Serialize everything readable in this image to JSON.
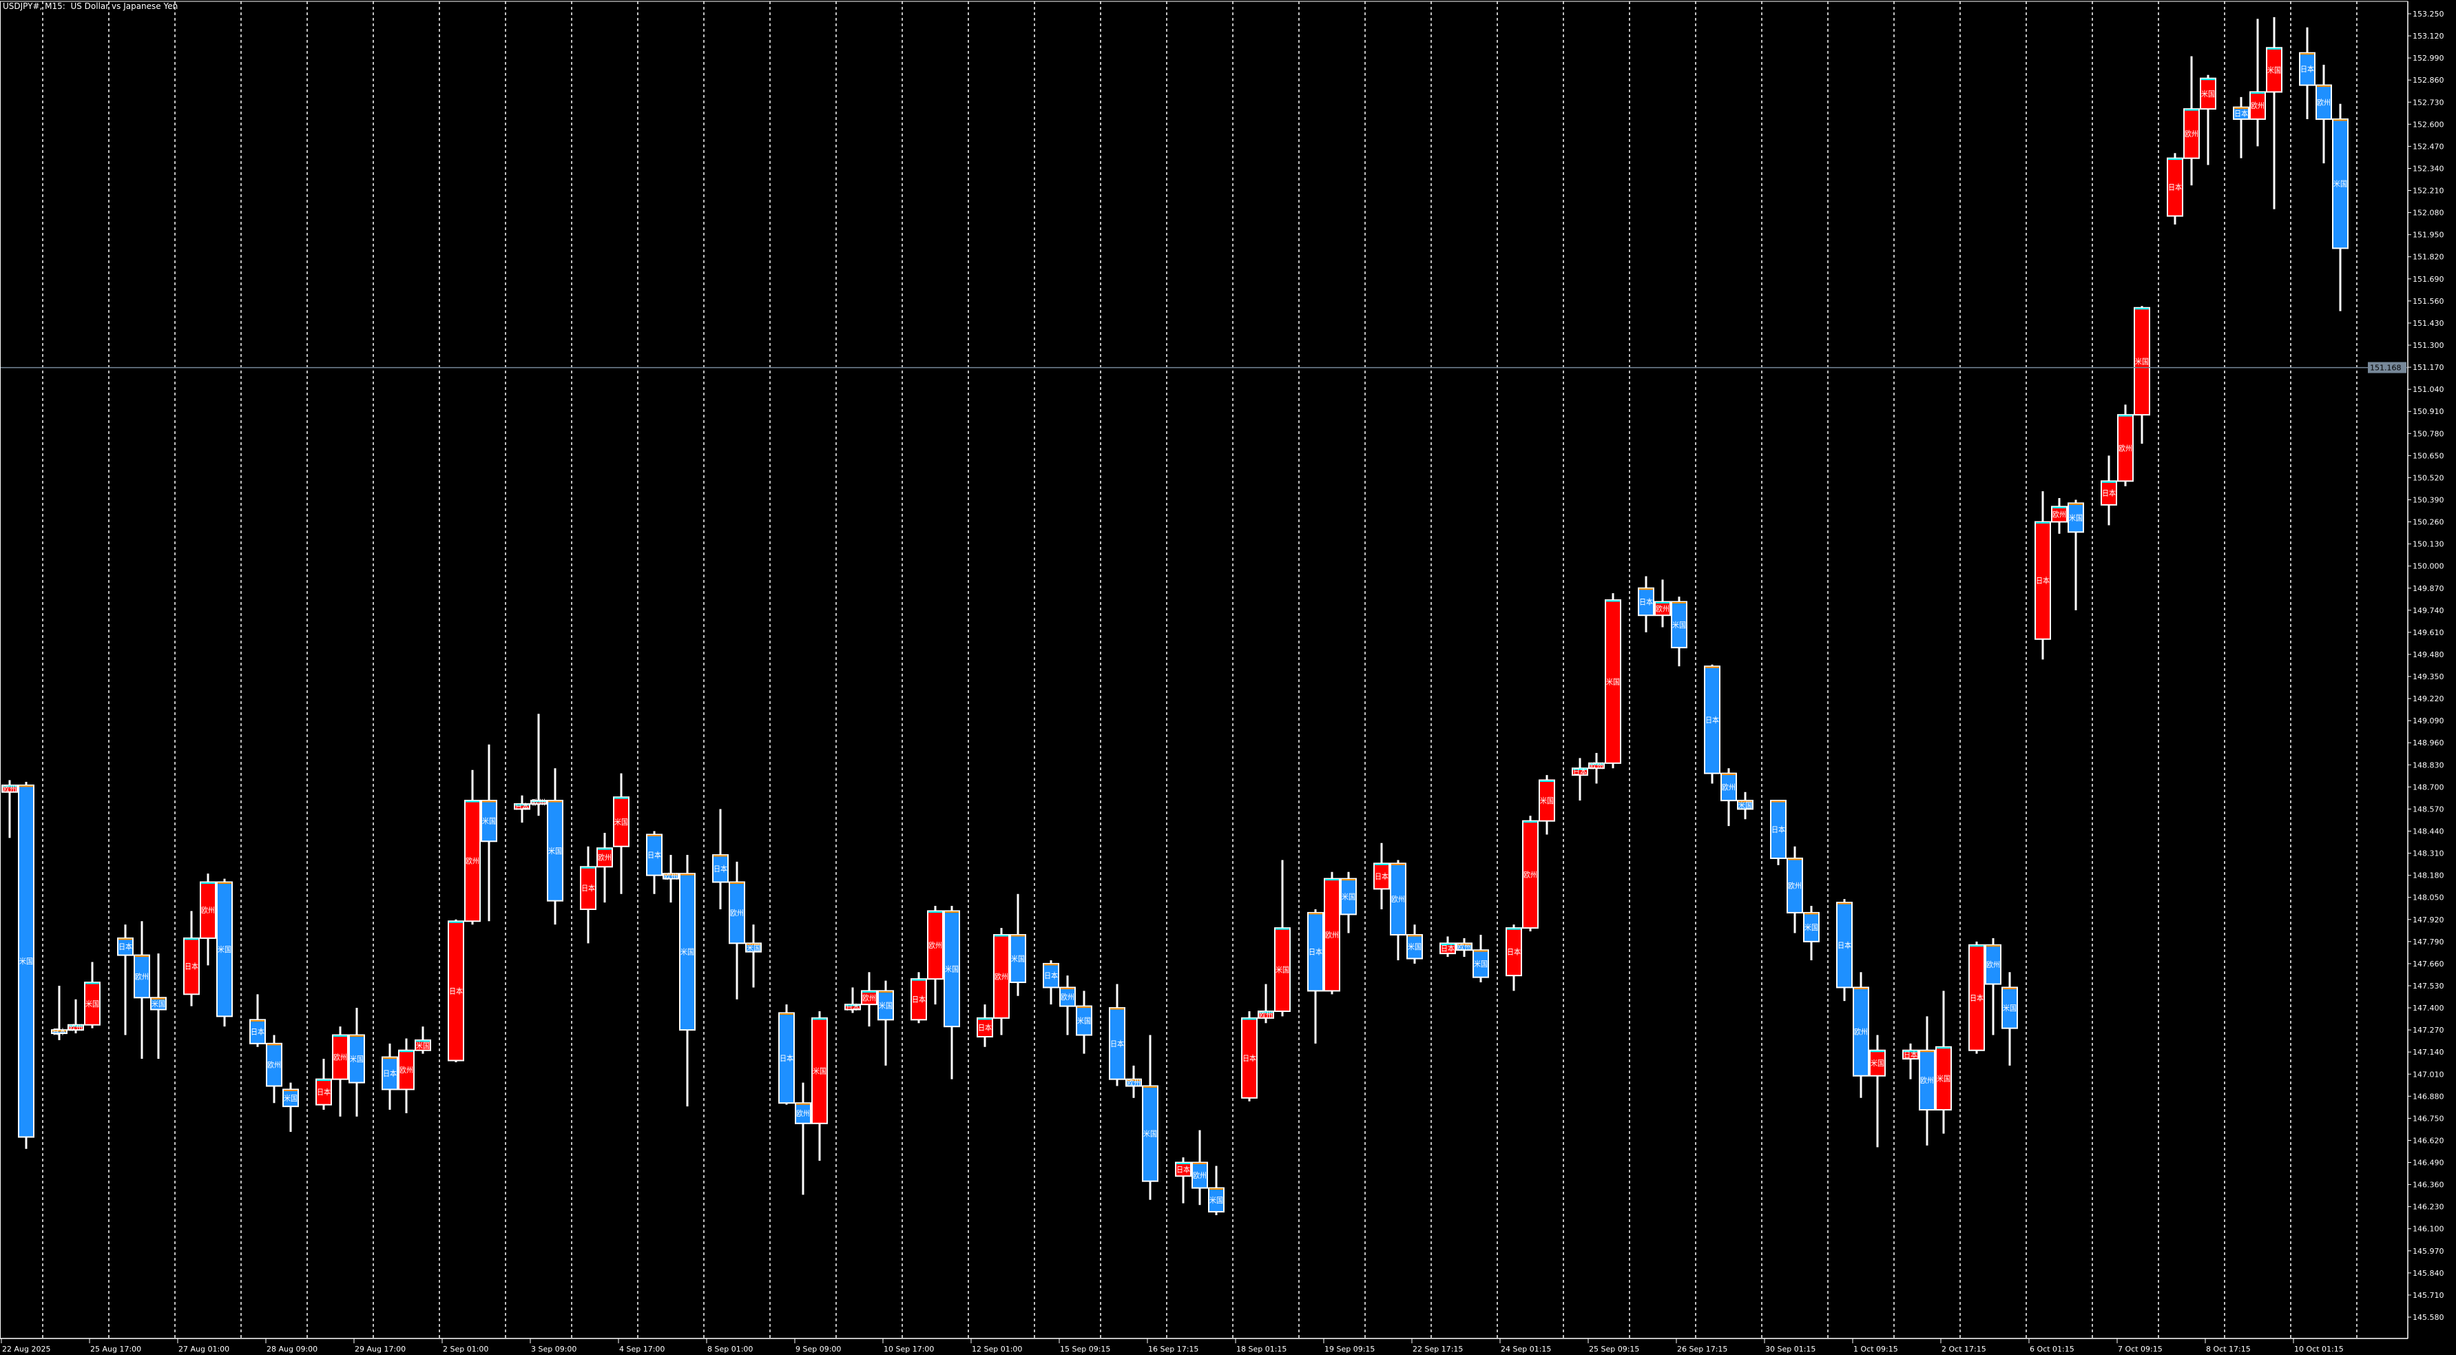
{
  "window": {
    "title": "USDJPY#, M15:  US Dollar vs Japanese Yen"
  },
  "colors": {
    "background": "#000000",
    "bull_body": "#ff0000",
    "bear_body": "#1e90ff",
    "bull_close_edge": "#00ffff",
    "bear_open_edge": "#ff8c00",
    "wick": "#ffffff",
    "grid": "#ffffff",
    "price_line": "#778899"
  },
  "chart_data": {
    "type": "candlestick",
    "title": "USDJPY#, M15:  US Dollar vs Japanese Yen",
    "grid": "vertical dashed day separators",
    "y_axis": {
      "position": "right",
      "range": [
        145.58,
        153.25
      ],
      "tick_labels": [
        "153.250",
        "153.120",
        "152.990",
        "152.860",
        "152.730",
        "152.600",
        "152.470",
        "152.340",
        "152.210",
        "152.080",
        "151.950",
        "151.820",
        "151.690",
        "151.560",
        "151.430",
        "151.300",
        "151.170",
        "151.040",
        "150.910",
        "150.780",
        "150.650",
        "150.520",
        "150.390",
        "150.260",
        "150.130",
        "150.000",
        "149.870",
        "149.740",
        "149.610",
        "149.480",
        "149.350",
        "149.220",
        "149.090",
        "148.960",
        "148.830",
        "148.700",
        "148.570",
        "148.440",
        "148.310",
        "148.180",
        "148.050",
        "147.920",
        "147.790",
        "147.660",
        "147.530",
        "147.400",
        "147.270",
        "147.140",
        "147.010",
        "146.880",
        "146.750",
        "146.620",
        "146.490",
        "146.360",
        "146.230",
        "146.100",
        "145.970",
        "145.840",
        "145.710",
        "145.580"
      ]
    },
    "x_axis": {
      "tick_labels": [
        "22 Aug 2025",
        "25 Aug 17:00",
        "27 Aug 01:00",
        "28 Aug 09:00",
        "29 Aug 17:00",
        "2 Sep 01:00",
        "3 Sep 09:00",
        "4 Sep 17:00",
        "8 Sep 01:00",
        "9 Sep 09:00",
        "10 Sep 17:00",
        "12 Sep 01:00",
        "15 Sep 09:15",
        "16 Sep 17:15",
        "18 Sep 01:15",
        "19 Sep 09:15",
        "22 Sep 17:15",
        "24 Sep 01:15",
        "25 Sep 09:15",
        "26 Sep 17:15",
        "30 Sep 01:15",
        "1 Oct 09:15",
        "2 Oct 17:15",
        "6 Oct 01:15",
        "7 Oct 09:15",
        "8 Oct 17:15",
        "10 Oct 01:15"
      ]
    },
    "current_price": {
      "value": 151.168,
      "label": "151.168"
    },
    "sessions": [
      "日本",
      "欧州",
      "米国"
    ],
    "candle_fields": [
      "session",
      "open",
      "high",
      "low",
      "close"
    ],
    "candles": [
      [
        "欧州",
        148.67,
        148.74,
        148.4,
        148.71
      ],
      [
        "米国",
        148.71,
        148.73,
        146.57,
        146.64
      ],
      [
        "日本",
        147.27,
        147.53,
        147.21,
        147.25
      ],
      [
        "欧州",
        147.27,
        147.45,
        147.25,
        147.3
      ],
      [
        "米国",
        147.3,
        147.67,
        147.28,
        147.55
      ],
      [
        "日本",
        147.81,
        147.89,
        147.24,
        147.71
      ],
      [
        "欧州",
        147.71,
        147.91,
        147.1,
        147.46
      ],
      [
        "米国",
        147.46,
        147.72,
        147.1,
        147.39
      ],
      [
        "日本",
        147.48,
        147.97,
        147.41,
        147.81
      ],
      [
        "欧州",
        147.81,
        148.19,
        147.65,
        148.14
      ],
      [
        "米国",
        148.14,
        148.16,
        147.29,
        147.35
      ],
      [
        "日本",
        147.33,
        147.48,
        147.17,
        147.19
      ],
      [
        "欧州",
        147.19,
        147.24,
        146.84,
        146.94
      ],
      [
        "米国",
        146.92,
        146.96,
        146.67,
        146.82
      ],
      [
        "日本",
        146.83,
        147.1,
        146.8,
        146.98
      ],
      [
        "欧州",
        146.98,
        147.29,
        146.76,
        147.24
      ],
      [
        "米国",
        147.24,
        147.4,
        146.76,
        146.96
      ],
      [
        "日本",
        147.11,
        147.19,
        146.8,
        146.92
      ],
      [
        "欧州",
        146.92,
        147.22,
        146.78,
        147.15
      ],
      [
        "米国",
        147.15,
        147.29,
        147.13,
        147.21
      ],
      [
        "日本",
        147.09,
        147.92,
        147.08,
        147.91
      ],
      [
        "欧州",
        147.91,
        148.8,
        147.89,
        148.62
      ],
      [
        "米国",
        148.62,
        148.95,
        147.91,
        148.38
      ],
      [
        "日本",
        148.57,
        148.65,
        148.49,
        148.6
      ],
      [
        "欧州",
        148.6,
        149.13,
        148.53,
        148.62
      ],
      [
        "米国",
        148.62,
        148.81,
        147.89,
        148.03
      ],
      [
        "日本",
        147.98,
        148.35,
        147.78,
        148.23
      ],
      [
        "欧州",
        148.23,
        148.43,
        148.02,
        148.34
      ],
      [
        "米国",
        148.35,
        148.78,
        148.07,
        148.64
      ],
      [
        "日本",
        148.42,
        148.44,
        148.07,
        148.18
      ],
      [
        "欧州",
        148.19,
        148.3,
        148.02,
        148.16
      ],
      [
        "米国",
        148.19,
        148.3,
        146.82,
        147.27
      ],
      [
        "日本",
        148.3,
        148.57,
        147.98,
        148.14
      ],
      [
        "欧州",
        148.14,
        148.26,
        147.45,
        147.78
      ],
      [
        "米国",
        147.78,
        147.89,
        147.52,
        147.73
      ],
      [
        "日本",
        147.37,
        147.42,
        146.83,
        146.84
      ],
      [
        "欧州",
        146.84,
        146.96,
        146.3,
        146.72
      ],
      [
        "米国",
        146.72,
        147.38,
        146.5,
        147.34
      ],
      [
        "日本",
        147.39,
        147.52,
        147.37,
        147.42
      ],
      [
        "欧州",
        147.42,
        147.61,
        147.29,
        147.5
      ],
      [
        "米国",
        147.5,
        147.56,
        147.06,
        147.33
      ],
      [
        "日本",
        147.33,
        147.61,
        147.31,
        147.57
      ],
      [
        "欧州",
        147.57,
        148.0,
        147.42,
        147.97
      ],
      [
        "米国",
        147.97,
        148.0,
        146.98,
        147.29
      ],
      [
        "日本",
        147.23,
        147.42,
        147.17,
        147.34
      ],
      [
        "欧州",
        147.34,
        147.87,
        147.24,
        147.83
      ],
      [
        "米国",
        147.83,
        148.07,
        147.47,
        147.55
      ],
      [
        "日本",
        147.66,
        147.68,
        147.42,
        147.52
      ],
      [
        "欧州",
        147.52,
        147.59,
        147.24,
        147.41
      ],
      [
        "米国",
        147.41,
        147.5,
        147.13,
        147.24
      ],
      [
        "日本",
        147.4,
        147.54,
        146.94,
        146.98
      ],
      [
        "欧州",
        146.98,
        147.06,
        146.87,
        146.94
      ],
      [
        "米国",
        146.94,
        147.24,
        146.27,
        146.38
      ],
      [
        "日本",
        146.41,
        146.52,
        146.25,
        146.49
      ],
      [
        "欧州",
        146.49,
        146.68,
        146.24,
        146.34
      ],
      [
        "米国",
        146.34,
        146.47,
        146.18,
        146.2
      ],
      [
        "日本",
        146.87,
        147.38,
        146.85,
        147.34
      ],
      [
        "欧州",
        147.34,
        147.54,
        147.31,
        147.38
      ],
      [
        "米国",
        147.38,
        148.27,
        147.35,
        147.87
      ],
      [
        "日本",
        147.96,
        147.98,
        147.19,
        147.5
      ],
      [
        "欧州",
        147.5,
        148.2,
        147.48,
        148.16
      ],
      [
        "米国",
        148.16,
        148.2,
        147.84,
        147.95
      ],
      [
        "日本",
        148.1,
        148.37,
        147.98,
        148.25
      ],
      [
        "欧州",
        148.25,
        148.27,
        147.68,
        147.83
      ],
      [
        "米国",
        147.83,
        147.89,
        147.66,
        147.69
      ],
      [
        "日本",
        147.72,
        147.82,
        147.7,
        147.78
      ],
      [
        "欧州",
        147.78,
        147.81,
        147.7,
        147.74
      ],
      [
        "米国",
        147.74,
        147.83,
        147.55,
        147.58
      ],
      [
        "日本",
        147.59,
        147.89,
        147.5,
        147.87
      ],
      [
        "欧州",
        147.87,
        148.53,
        147.85,
        148.5
      ],
      [
        "米国",
        148.5,
        148.77,
        148.42,
        148.74
      ],
      [
        "日本",
        148.77,
        148.87,
        148.62,
        148.81
      ],
      [
        "欧州",
        148.81,
        148.9,
        148.72,
        148.84
      ],
      [
        "米国",
        148.84,
        149.84,
        148.81,
        149.8
      ],
      [
        "日本",
        149.87,
        149.94,
        149.61,
        149.71
      ],
      [
        "欧州",
        149.71,
        149.92,
        149.64,
        149.79
      ],
      [
        "米国",
        149.79,
        149.82,
        149.41,
        149.52
      ],
      [
        "日本",
        149.41,
        149.42,
        148.72,
        148.78
      ],
      [
        "欧州",
        148.78,
        148.81,
        148.47,
        148.62
      ],
      [
        "米国",
        148.62,
        148.67,
        148.51,
        148.57
      ],
      [
        "日本",
        148.62,
        148.62,
        148.24,
        148.28
      ],
      [
        "欧州",
        148.28,
        148.35,
        147.84,
        147.96
      ],
      [
        "米国",
        147.96,
        148.0,
        147.68,
        147.79
      ],
      [
        "日本",
        148.02,
        148.04,
        147.44,
        147.52
      ],
      [
        "欧州",
        147.52,
        147.61,
        146.87,
        147.0
      ],
      [
        "米国",
        147.0,
        147.24,
        146.58,
        147.15
      ],
      [
        "日本",
        147.1,
        147.19,
        146.98,
        147.15
      ],
      [
        "欧州",
        147.15,
        147.35,
        146.59,
        146.8
      ],
      [
        "米国",
        146.8,
        147.5,
        146.66,
        147.17
      ],
      [
        "日本",
        147.15,
        147.79,
        147.13,
        147.77
      ],
      [
        "欧州",
        147.77,
        147.81,
        147.24,
        147.54
      ],
      [
        "米国",
        147.52,
        147.61,
        147.06,
        147.28
      ],
      [
        "日本",
        149.57,
        150.44,
        149.45,
        150.26
      ],
      [
        "欧州",
        150.26,
        150.4,
        150.19,
        150.35
      ],
      [
        "米国",
        150.37,
        150.39,
        149.74,
        150.2
      ],
      [
        "日本",
        150.36,
        150.65,
        150.24,
        150.5
      ],
      [
        "欧州",
        150.5,
        150.95,
        150.47,
        150.89
      ],
      [
        "米国",
        150.89,
        151.53,
        150.72,
        151.52
      ],
      [
        "日本",
        152.06,
        152.43,
        152.01,
        152.4
      ],
      [
        "欧州",
        152.4,
        153.0,
        152.24,
        152.69
      ],
      [
        "米国",
        152.69,
        152.89,
        152.36,
        152.87
      ],
      [
        "日本",
        152.7,
        152.76,
        152.4,
        152.63
      ],
      [
        "欧州",
        152.63,
        153.22,
        152.47,
        152.79
      ],
      [
        "米国",
        152.79,
        153.23,
        152.1,
        153.05
      ],
      [
        "日本",
        153.02,
        153.17,
        152.63,
        152.83
      ],
      [
        "欧州",
        152.83,
        152.95,
        152.37,
        152.63
      ],
      [
        "米国",
        152.63,
        152.72,
        151.5,
        151.87
      ]
    ]
  }
}
